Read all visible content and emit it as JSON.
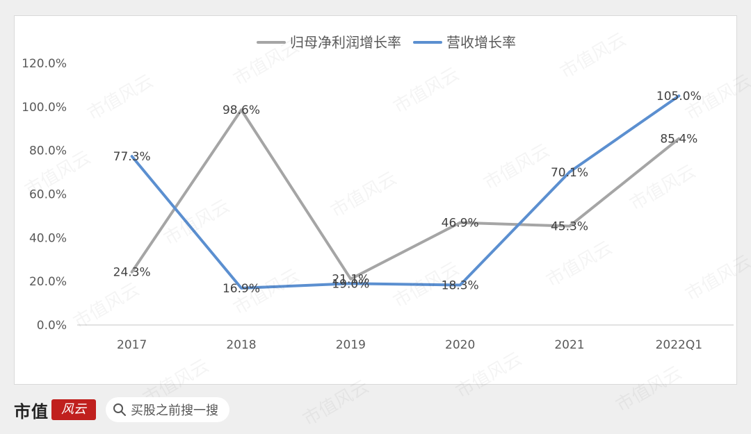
{
  "chart_data": {
    "type": "line",
    "categories": [
      "2017",
      "2018",
      "2019",
      "2020",
      "2021",
      "2022Q1"
    ],
    "series": [
      {
        "name": "归母净利润增长率",
        "values": [
          24.3,
          98.6,
          21.1,
          46.9,
          45.3,
          85.4
        ],
        "labels": [
          "24.3%",
          "98.6%",
          "21.1%",
          "46.9%",
          "45.3%",
          "85.4%"
        ],
        "color": "#a5a5a5"
      },
      {
        "name": "营收增长率",
        "values": [
          77.3,
          16.9,
          19.0,
          18.3,
          70.1,
          105.0
        ],
        "labels": [
          "77.3%",
          "16.9%",
          "19.0%",
          "18.3%",
          "70.1%",
          "105.0%"
        ],
        "color": "#5b8fd0"
      }
    ],
    "ylim": [
      0,
      120
    ],
    "yticks": [
      "0.0%",
      "20.0%",
      "40.0%",
      "60.0%",
      "80.0%",
      "100.0%",
      "120.0%"
    ],
    "grid": false,
    "legend": "top-center"
  },
  "footer": {
    "brand": "市值",
    "brand_mark": "风云",
    "search_text": "买股之前搜一搜"
  },
  "watermark": "市值风云"
}
